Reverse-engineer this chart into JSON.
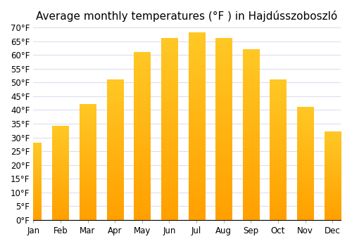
{
  "title": "Average monthly temperatures (°F ) in Hajdússzoboszló",
  "months": [
    "Jan",
    "Feb",
    "Mar",
    "Apr",
    "May",
    "Jun",
    "Jul",
    "Aug",
    "Sep",
    "Oct",
    "Nov",
    "Dec"
  ],
  "values": [
    28,
    34,
    42,
    51,
    61,
    66,
    68,
    66,
    62,
    51,
    41,
    32
  ],
  "bar_color_top": "#FFC825",
  "bar_color_bottom": "#FFA000",
  "background_color": "#ffffff",
  "grid_color": "#ddddee",
  "ylim": [
    0,
    70
  ],
  "yticks": [
    0,
    5,
    10,
    15,
    20,
    25,
    30,
    35,
    40,
    45,
    50,
    55,
    60,
    65,
    70
  ],
  "ytick_labels": [
    "0°F",
    "5°F",
    "10°F",
    "15°F",
    "20°F",
    "25°F",
    "30°F",
    "35°F",
    "40°F",
    "45°F",
    "50°F",
    "55°F",
    "60°F",
    "65°F",
    "70°F"
  ],
  "title_fontsize": 11,
  "tick_fontsize": 8.5,
  "bar_width": 0.6
}
